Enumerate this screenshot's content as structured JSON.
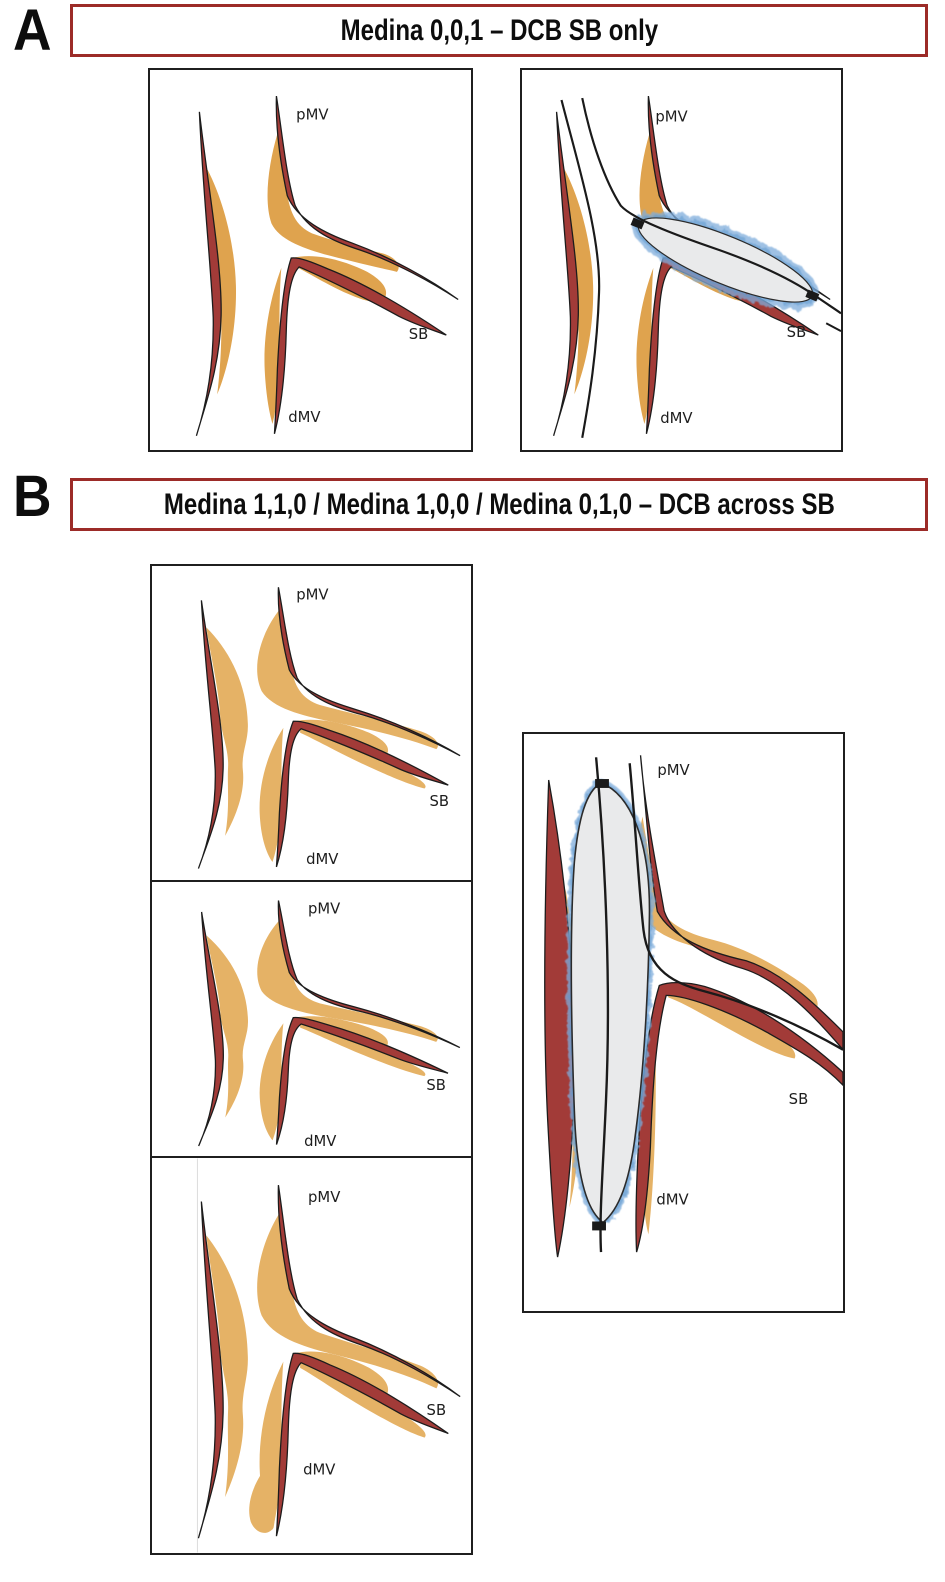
{
  "figure": {
    "section_a": {
      "letter": "A",
      "title": "Medina 0,0,1 – DCB SB only"
    },
    "section_b": {
      "letter": "B",
      "title": "Medina 1,1,0 / Medina 1,0,0 / Medina 0,1,0 – DCB across SB"
    }
  },
  "labels": {
    "pmv": "pMV",
    "sb": "SB",
    "dmv": "dMV"
  },
  "colors": {
    "vessel_wall": "#A23B38",
    "vessel_outline": "#1c1c1c",
    "plaque_a": "#DFA34E",
    "plaque_b": "#E5B266",
    "balloon_fill": "#E9EAEB",
    "balloon_outline": "#2b2b2b",
    "balloon_coating": "#7FADDC",
    "balloon_coating_dark": "#5E9ACF",
    "wire": "#1a1a1a",
    "title_border": "#9C2B28",
    "panel_border": "#1f1f1f",
    "label_text": "#1d1d1d"
  }
}
